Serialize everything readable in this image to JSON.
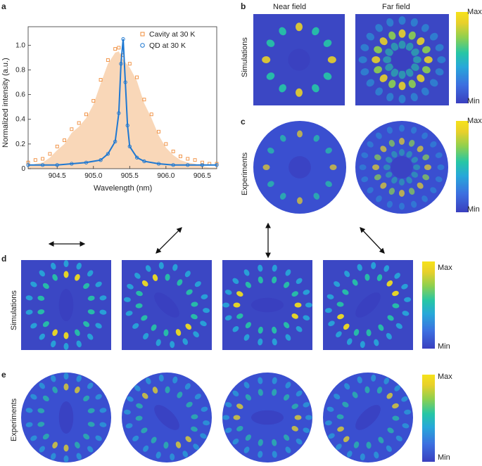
{
  "panels": {
    "a": "a",
    "b": "b",
    "c": "c",
    "d": "d",
    "e": "e"
  },
  "chart_data": {
    "type": "line",
    "xlabel": "Wavelength (nm)",
    "ylabel": "Normalized intensity (a.u.)",
    "xlim": [
      904.1,
      906.7
    ],
    "ylim": [
      0,
      1.15
    ],
    "xticks": [
      "904.5",
      "905.0",
      "905.5",
      "906.0",
      "906.5"
    ],
    "yticks": [
      "0",
      "0.2",
      "0.4",
      "0.6",
      "0.8",
      "1.0"
    ],
    "legend_position": "top-right",
    "series": [
      {
        "name": "Cavity at 30 K",
        "color": "#f08c3a",
        "marker": "open-square",
        "x": [
          904.1,
          904.2,
          904.3,
          904.4,
          904.5,
          904.6,
          904.7,
          904.8,
          904.9,
          905.0,
          905.1,
          905.2,
          905.3,
          905.35,
          905.4,
          905.5,
          905.6,
          905.7,
          905.8,
          905.9,
          906.0,
          906.1,
          906.2,
          906.3,
          906.4,
          906.5,
          906.6,
          906.7
        ],
        "y": [
          0.05,
          0.07,
          0.08,
          0.12,
          0.18,
          0.23,
          0.32,
          0.37,
          0.44,
          0.55,
          0.72,
          0.88,
          0.97,
          0.98,
          0.92,
          0.85,
          0.74,
          0.56,
          0.44,
          0.3,
          0.2,
          0.14,
          0.1,
          0.08,
          0.07,
          0.05,
          0.04,
          0.04
        ]
      },
      {
        "name": "QD at 30 K",
        "color": "#1f78d1",
        "marker": "open-circle",
        "x": [
          904.1,
          904.3,
          904.5,
          904.7,
          904.9,
          905.1,
          905.2,
          905.3,
          905.35,
          905.38,
          905.41,
          905.44,
          905.47,
          905.5,
          905.6,
          905.7,
          905.9,
          906.1,
          906.3,
          906.5,
          906.7
        ],
        "y": [
          0.03,
          0.03,
          0.03,
          0.04,
          0.05,
          0.07,
          0.12,
          0.22,
          0.45,
          0.85,
          1.05,
          0.7,
          0.35,
          0.18,
          0.09,
          0.06,
          0.04,
          0.03,
          0.03,
          0.03,
          0.03
        ]
      }
    ]
  },
  "labels": {
    "near_field": "Near field",
    "far_field": "Far field",
    "simulations": "Simulations",
    "experiments": "Experiments",
    "max": "Max",
    "min": "Min"
  },
  "colormap": [
    "#3a3fbf",
    "#3c6fe0",
    "#27a8d9",
    "#26c6a6",
    "#8ed04f",
    "#e8d02a",
    "#f6e21a"
  ],
  "polarization_arrows": [
    "horizontal",
    "diagonal-up-right",
    "vertical",
    "diagonal-down-right"
  ]
}
